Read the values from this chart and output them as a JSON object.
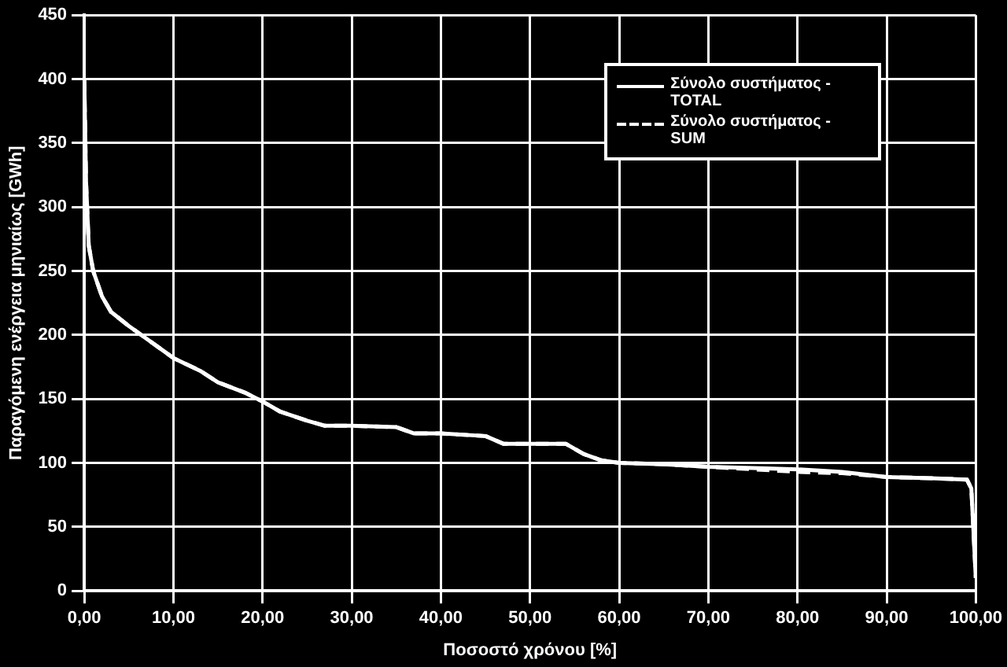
{
  "chart_data": {
    "type": "line",
    "xlabel": "Ποσοστό χρόνου [%]",
    "ylabel": "Παραγόμενη ενέργεια μηνιαίως [GWh]",
    "x": [
      0,
      0.2,
      0.5,
      1,
      2,
      3,
      5,
      7,
      10,
      13,
      15,
      18,
      20,
      22,
      25,
      27,
      30,
      35,
      37,
      40,
      45,
      47,
      50,
      54,
      56,
      58,
      60,
      65,
      70,
      75,
      80,
      85,
      90,
      95,
      99,
      99.5,
      100
    ],
    "series": [
      {
        "name": "Σύνολο συστήματος - TOTAL",
        "color": "#ffffff",
        "line_style": "solid",
        "values": [
          400,
          320,
          270,
          250,
          230,
          218,
          207,
          197,
          182,
          172,
          163,
          155,
          148,
          140,
          133,
          129,
          129,
          128,
          123,
          123,
          121,
          115,
          115,
          115,
          107,
          102,
          100,
          99,
          97,
          96,
          95,
          93,
          89,
          88,
          87,
          80,
          10
        ]
      },
      {
        "name": "Σύνολο συστήματος - SUM",
        "color": "#ffffff",
        "line_style": "dashed",
        "values": [
          400,
          320,
          270,
          250,
          230,
          218,
          207,
          197,
          182,
          172,
          163,
          155,
          148,
          140,
          133,
          129,
          129,
          128,
          123,
          123,
          121,
          115,
          115,
          115,
          107,
          102,
          100,
          99,
          97,
          95,
          93,
          92,
          89,
          88,
          87,
          80,
          10
        ]
      }
    ],
    "xlim": [
      0,
      100
    ],
    "xticks": [
      {
        "value": 0,
        "label": "0,00"
      },
      {
        "value": 10,
        "label": "10,00"
      },
      {
        "value": 20,
        "label": "20,00"
      },
      {
        "value": 30,
        "label": "30,00"
      },
      {
        "value": 40,
        "label": "40,00"
      },
      {
        "value": 50,
        "label": "50,00"
      },
      {
        "value": 60,
        "label": "60,00"
      },
      {
        "value": 70,
        "label": "70,00"
      },
      {
        "value": 80,
        "label": "80,00"
      },
      {
        "value": 90,
        "label": "90,00"
      },
      {
        "value": 100,
        "label": "100,00"
      }
    ],
    "ylim": [
      0,
      450
    ],
    "yticks": [
      0,
      50,
      100,
      150,
      200,
      250,
      300,
      350,
      400,
      450
    ],
    "grid": true,
    "legend": "top right",
    "marker": "none"
  }
}
